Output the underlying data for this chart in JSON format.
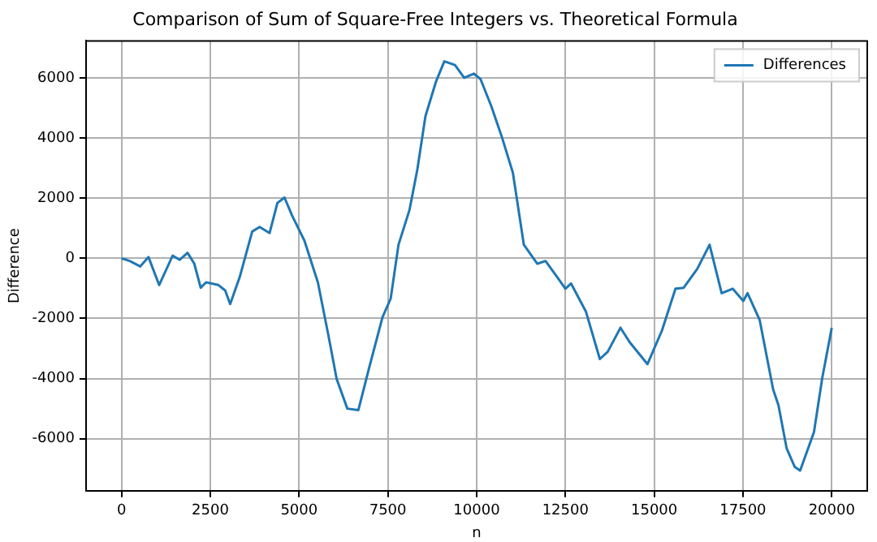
{
  "chart_data": {
    "type": "line",
    "title": "Comparison of Sum of Square-Free Integers vs. Theoretical Formula",
    "xlabel": "n",
    "ylabel": "Difference",
    "legend": "top right",
    "grid": true,
    "marker": "none",
    "line_style": "solid",
    "xlim": [
      -1000,
      21000
    ],
    "xticks": [
      0,
      2500,
      5000,
      7500,
      10000,
      12500,
      15000,
      17500,
      20000
    ],
    "ylim": [
      -7730,
      7230
    ],
    "yticks": [
      -6000,
      -4000,
      -2000,
      0,
      2000,
      4000,
      6000
    ],
    "series": [
      {
        "name": "Differences",
        "color": "#1f77b4",
        "x": [
          0,
          230,
          530,
          760,
          1060,
          1440,
          1640,
          1860,
          2050,
          2230,
          2380,
          2730,
          2920,
          3060,
          3330,
          3680,
          3890,
          4170,
          4390,
          4590,
          4800,
          5150,
          5530,
          5830,
          6060,
          6360,
          6670,
          6970,
          7350,
          7580,
          7800,
          8110,
          8330,
          8560,
          8860,
          9090,
          9390,
          9650,
          9920,
          10110,
          10410,
          10720,
          11020,
          11330,
          11710,
          11940,
          12320,
          12500,
          12660,
          13080,
          13470,
          13690,
          14050,
          14310,
          14810,
          15220,
          15600,
          15830,
          16210,
          16560,
          16900,
          17210,
          17510,
          17630,
          17970,
          18350,
          18500,
          18730,
          18960,
          19110,
          19500,
          19730,
          20000
        ],
        "values": [
          0,
          -90,
          -270,
          40,
          -890,
          90,
          -50,
          180,
          -180,
          -980,
          -800,
          -890,
          -1070,
          -1520,
          -620,
          890,
          1040,
          840,
          1840,
          2020,
          1430,
          590,
          -800,
          -2590,
          -4020,
          -5000,
          -5050,
          -3660,
          -1960,
          -1340,
          450,
          1610,
          2950,
          4730,
          5890,
          6550,
          6430,
          6000,
          6140,
          5960,
          5070,
          4000,
          2850,
          450,
          -180,
          -90,
          -710,
          -1010,
          -840,
          -1780,
          -3350,
          -3110,
          -2310,
          -2790,
          -3520,
          -2400,
          -1010,
          -980,
          -360,
          450,
          -1160,
          -1010,
          -1420,
          -1160,
          -2050,
          -4360,
          -4890,
          -6320,
          -6940,
          -7060,
          -5780,
          -4000,
          -2310
        ]
      }
    ]
  }
}
